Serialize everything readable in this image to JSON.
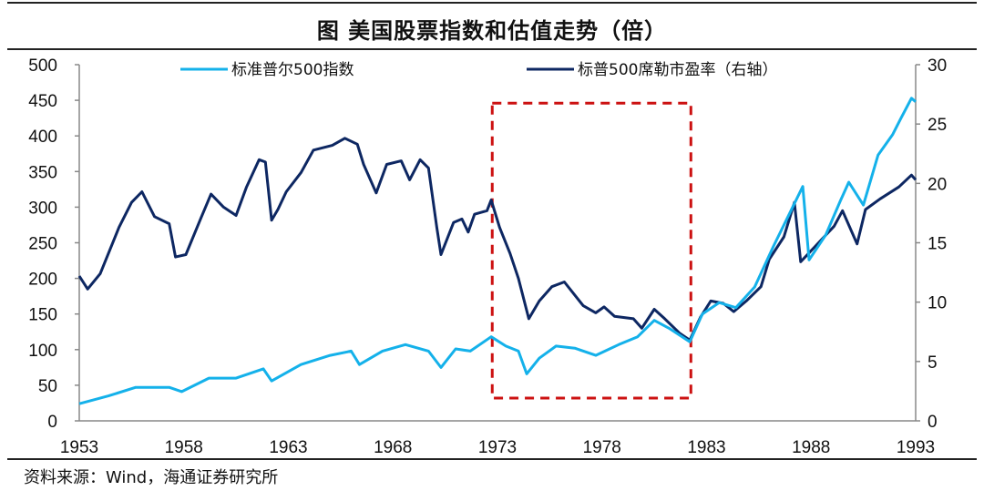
{
  "chart_data": {
    "type": "line",
    "title": "图  美国股票指数和估值走势（倍）",
    "source": "资料来源：Wind，海通证券研究所",
    "x_ticks": [
      "1953",
      "1958",
      "1963",
      "1968",
      "1973",
      "1978",
      "1983",
      "1988",
      "1993"
    ],
    "xlim": [
      1953,
      1993
    ],
    "y_left": {
      "ticks": [
        "0",
        "50",
        "100",
        "150",
        "200",
        "250",
        "300",
        "350",
        "400",
        "450",
        "500"
      ],
      "ylim": [
        0,
        500
      ]
    },
    "y_right": {
      "ticks": [
        "0",
        "5",
        "10",
        "15",
        "20",
        "25",
        "30"
      ],
      "ylim": [
        0,
        30
      ]
    },
    "legend_position": "top",
    "series": [
      {
        "name": "标准普尔500指数",
        "axis": "left",
        "color": "#14b1ea",
        "points": [
          [
            1953,
            24
          ],
          [
            1954.4,
            35
          ],
          [
            1955.7,
            47
          ],
          [
            1957.3,
            47
          ],
          [
            1957.9,
            41
          ],
          [
            1959.2,
            60
          ],
          [
            1960.5,
            60
          ],
          [
            1961.8,
            73
          ],
          [
            1962.2,
            56
          ],
          [
            1963.6,
            79
          ],
          [
            1965,
            92
          ],
          [
            1966,
            98
          ],
          [
            1966.4,
            79
          ],
          [
            1967.5,
            98
          ],
          [
            1968.6,
            107
          ],
          [
            1969.7,
            98
          ],
          [
            1970.3,
            75
          ],
          [
            1971,
            101
          ],
          [
            1971.7,
            98
          ],
          [
            1972.7,
            118
          ],
          [
            1973.4,
            105
          ],
          [
            1974,
            98
          ],
          [
            1974.4,
            66
          ],
          [
            1975,
            88
          ],
          [
            1975.8,
            105
          ],
          [
            1976.7,
            102
          ],
          [
            1977.7,
            92
          ],
          [
            1978.8,
            107
          ],
          [
            1979.7,
            118
          ],
          [
            1980.5,
            141
          ],
          [
            1981.2,
            130
          ],
          [
            1982.2,
            111
          ],
          [
            1982.8,
            150
          ],
          [
            1983.6,
            166
          ],
          [
            1984.4,
            159
          ],
          [
            1985.3,
            188
          ],
          [
            1986.2,
            245
          ],
          [
            1987.6,
            329
          ],
          [
            1987.9,
            226
          ],
          [
            1988.7,
            261
          ],
          [
            1989.4,
            309
          ],
          [
            1989.8,
            335
          ],
          [
            1990.5,
            303
          ],
          [
            1991.2,
            373
          ],
          [
            1991.9,
            402
          ],
          [
            1992.3,
            425
          ],
          [
            1992.8,
            453
          ],
          [
            1993,
            448
          ]
        ]
      },
      {
        "name": "标普500席勒市盈率（右轴）",
        "axis": "right",
        "color": "#0d2762",
        "points": [
          [
            1953,
            12.2
          ],
          [
            1953.4,
            11.1
          ],
          [
            1954,
            12.4
          ],
          [
            1954.9,
            16.3
          ],
          [
            1955.5,
            18.4
          ],
          [
            1956,
            19.3
          ],
          [
            1956.6,
            17.2
          ],
          [
            1957.3,
            16.6
          ],
          [
            1957.6,
            13.8
          ],
          [
            1958.1,
            14
          ],
          [
            1958.8,
            17
          ],
          [
            1959.3,
            19.1
          ],
          [
            1959.9,
            18
          ],
          [
            1960.5,
            17.3
          ],
          [
            1961,
            19.7
          ],
          [
            1961.6,
            22
          ],
          [
            1961.9,
            21.8
          ],
          [
            1962.2,
            16.9
          ],
          [
            1962.5,
            17.8
          ],
          [
            1962.9,
            19.3
          ],
          [
            1963.6,
            20.9
          ],
          [
            1964.2,
            22.8
          ],
          [
            1965.1,
            23.2
          ],
          [
            1965.7,
            23.8
          ],
          [
            1966.3,
            23.3
          ],
          [
            1966.6,
            21.6
          ],
          [
            1967.2,
            19.2
          ],
          [
            1967.7,
            21.6
          ],
          [
            1968.4,
            21.9
          ],
          [
            1968.8,
            20.3
          ],
          [
            1969.3,
            22
          ],
          [
            1969.7,
            21.3
          ],
          [
            1970.1,
            16.3
          ],
          [
            1970.3,
            14
          ],
          [
            1970.9,
            16.7
          ],
          [
            1971.3,
            17
          ],
          [
            1971.6,
            15.9
          ],
          [
            1971.9,
            17.4
          ],
          [
            1972.5,
            17.7
          ],
          [
            1972.7,
            18.6
          ],
          [
            1973.1,
            16.3
          ],
          [
            1973.6,
            14.1
          ],
          [
            1974,
            12
          ],
          [
            1974.5,
            8.6
          ],
          [
            1975,
            10.1
          ],
          [
            1975.6,
            11.3
          ],
          [
            1976.2,
            11.7
          ],
          [
            1977.1,
            9.7
          ],
          [
            1977.7,
            9.1
          ],
          [
            1978.1,
            9.6
          ],
          [
            1978.6,
            8.8
          ],
          [
            1979.5,
            8.6
          ],
          [
            1979.9,
            7.8
          ],
          [
            1980.5,
            9.4
          ],
          [
            1981,
            8.6
          ],
          [
            1981.7,
            7.4
          ],
          [
            1982.2,
            6.8
          ],
          [
            1982.7,
            8.7
          ],
          [
            1983.2,
            10.1
          ],
          [
            1983.8,
            9.9
          ],
          [
            1984.3,
            9.2
          ],
          [
            1984.9,
            10.1
          ],
          [
            1985.6,
            11.3
          ],
          [
            1986,
            13.6
          ],
          [
            1986.7,
            15.5
          ],
          [
            1987.2,
            18.4
          ],
          [
            1987.5,
            13.4
          ],
          [
            1988.2,
            14.7
          ],
          [
            1989.1,
            16.4
          ],
          [
            1989.5,
            17.7
          ],
          [
            1990.2,
            14.9
          ],
          [
            1990.6,
            17.8
          ],
          [
            1991.3,
            18.7
          ],
          [
            1992.2,
            19.7
          ],
          [
            1992.8,
            20.7
          ],
          [
            1993,
            20.3
          ]
        ]
      }
    ],
    "highlight": {
      "style": "red dashed box",
      "color": "#cc1111",
      "x": [
        1972.75,
        1982.25
      ],
      "y_left": [
        32,
        446
      ]
    }
  }
}
